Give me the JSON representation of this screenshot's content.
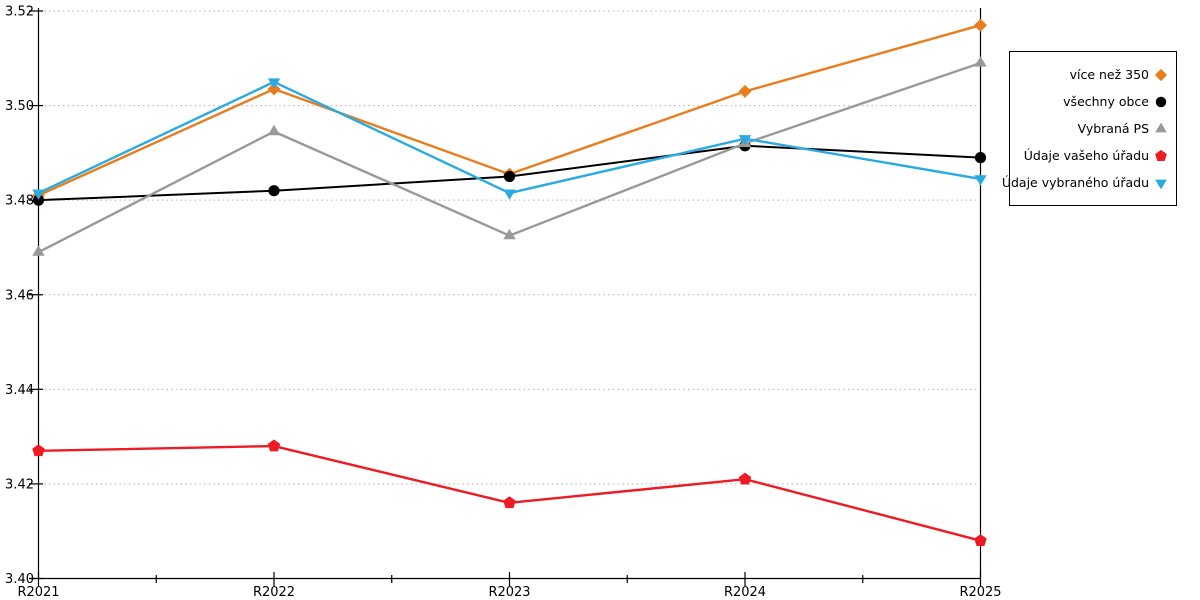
{
  "chart_data": {
    "type": "line",
    "title": "",
    "xlabel": "",
    "ylabel": "",
    "x_categories": [
      "R2021",
      "R2022",
      "R2023",
      "R2024",
      "R2025"
    ],
    "ylim": [
      3.4,
      3.52
    ],
    "ytick_step": 0.02,
    "ytick_labels": [
      "3.40",
      "3.42",
      "3.44",
      "3.46",
      "3.48",
      "3.50",
      "3.52"
    ],
    "grid": "horizontal dotted gridlines at each y tick, light gray",
    "frame": "left, bottom and right axis lines solid black; minor x ticks at midpoints between years",
    "legend_position": "outside right, boxed, markers to the right of labels",
    "colors": {
      "orange": "#E87D1E",
      "black": "#000000",
      "gray": "#999999",
      "red": "#ED1C24",
      "cyan": "#29ABE2",
      "gridline": "#B0B0B0"
    },
    "series": [
      {
        "name": "více než 350",
        "marker": "diamond",
        "color": "#E87D1E",
        "values": [
          3.481,
          3.5035,
          3.4855,
          3.503,
          3.517
        ]
      },
      {
        "name": "všechny obce",
        "marker": "circle",
        "color": "#000000",
        "values": [
          3.48,
          3.482,
          3.485,
          3.4915,
          3.489
        ]
      },
      {
        "name": "Vybraná PS",
        "marker": "triangle-up",
        "color": "#999999",
        "values": [
          3.469,
          3.4945,
          3.4725,
          3.492,
          3.509
        ]
      },
      {
        "name": "Údaje vašeho úřadu",
        "marker": "pentagon",
        "color": "#ED1C24",
        "values": [
          3.427,
          3.428,
          3.416,
          3.421,
          3.408
        ]
      },
      {
        "name": "Údaje vybraného úřadu",
        "marker": "triangle-down",
        "color": "#29ABE2",
        "values": [
          3.4815,
          3.505,
          3.4815,
          3.493,
          3.4845
        ]
      }
    ]
  }
}
